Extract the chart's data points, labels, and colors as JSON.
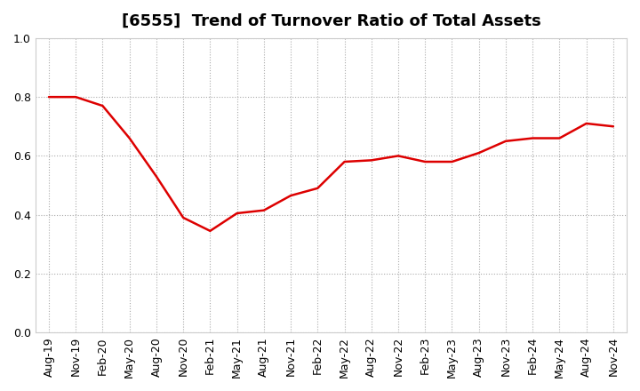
{
  "title": "[6555]  Trend of Turnover Ratio of Total Assets",
  "x_labels": [
    "Aug-19",
    "Nov-19",
    "Feb-20",
    "May-20",
    "Aug-20",
    "Nov-20",
    "Feb-21",
    "May-21",
    "Aug-21",
    "Nov-21",
    "Feb-22",
    "May-22",
    "Aug-22",
    "Nov-22",
    "Feb-23",
    "May-23",
    "Aug-23",
    "Nov-23",
    "Feb-24",
    "May-24",
    "Aug-24",
    "Nov-24"
  ],
  "y_values": [
    0.8,
    0.8,
    0.77,
    0.66,
    0.53,
    0.39,
    0.345,
    0.405,
    0.415,
    0.465,
    0.49,
    0.58,
    0.585,
    0.6,
    0.58,
    0.58,
    0.61,
    0.65,
    0.66,
    0.66,
    0.71,
    0.7
  ],
  "line_color": "#dd0000",
  "ylim": [
    0.0,
    1.0
  ],
  "yticks": [
    0.0,
    0.2,
    0.4,
    0.6,
    0.8,
    1.0
  ],
  "background_color": "#ffffff",
  "grid_color": "#aaaaaa",
  "title_fontsize": 13,
  "axis_fontsize": 9
}
